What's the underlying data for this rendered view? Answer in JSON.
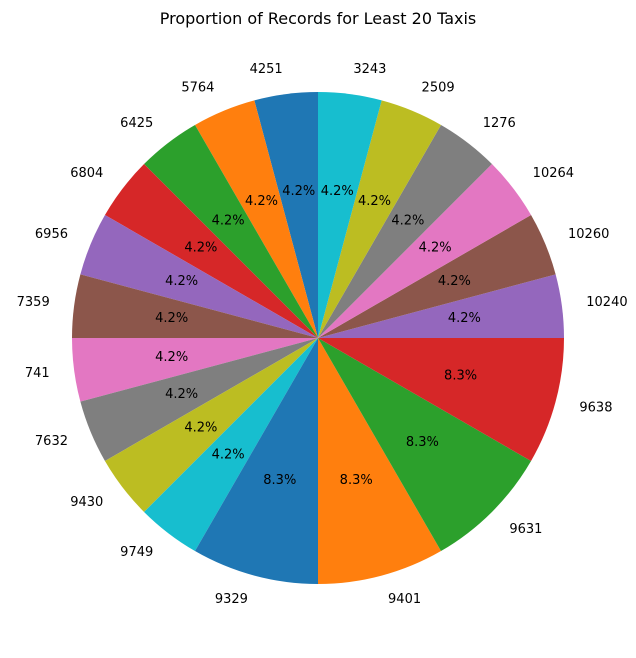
{
  "chart_data": {
    "type": "pie",
    "title": "Proportion of Records for Least 20 Taxis",
    "start_angle_deg": 90,
    "direction": "counterclockwise",
    "slices": [
      {
        "label": "4251",
        "value": 1,
        "pct_label": "4.2%",
        "color": "#1f77b4"
      },
      {
        "label": "5764",
        "value": 1,
        "pct_label": "4.2%",
        "color": "#ff7f0e"
      },
      {
        "label": "6425",
        "value": 1,
        "pct_label": "4.2%",
        "color": "#2ca02c"
      },
      {
        "label": "6804",
        "value": 1,
        "pct_label": "4.2%",
        "color": "#d62728"
      },
      {
        "label": "6956",
        "value": 1,
        "pct_label": "4.2%",
        "color": "#9467bd"
      },
      {
        "label": "7359",
        "value": 1,
        "pct_label": "4.2%",
        "color": "#8c564b"
      },
      {
        "label": "741",
        "value": 1,
        "pct_label": "4.2%",
        "color": "#e377c2"
      },
      {
        "label": "7632",
        "value": 1,
        "pct_label": "4.2%",
        "color": "#7f7f7f"
      },
      {
        "label": "9430",
        "value": 1,
        "pct_label": "4.2%",
        "color": "#bcbd22"
      },
      {
        "label": "9749",
        "value": 1,
        "pct_label": "4.2%",
        "color": "#17becf"
      },
      {
        "label": "9329",
        "value": 2,
        "pct_label": "8.3%",
        "color": "#1f77b4"
      },
      {
        "label": "9401",
        "value": 2,
        "pct_label": "8.3%",
        "color": "#ff7f0e"
      },
      {
        "label": "9631",
        "value": 2,
        "pct_label": "8.3%",
        "color": "#2ca02c"
      },
      {
        "label": "9638",
        "value": 2,
        "pct_label": "8.3%",
        "color": "#d62728"
      },
      {
        "label": "10240",
        "value": 1,
        "pct_label": "4.2%",
        "color": "#9467bd"
      },
      {
        "label": "10260",
        "value": 1,
        "pct_label": "4.2%",
        "color": "#8c564b"
      },
      {
        "label": "10264",
        "value": 1,
        "pct_label": "4.2%",
        "color": "#e377c2"
      },
      {
        "label": "1276",
        "value": 1,
        "pct_label": "4.2%",
        "color": "#7f7f7f"
      },
      {
        "label": "2509",
        "value": 1,
        "pct_label": "4.2%",
        "color": "#bcbd22"
      },
      {
        "label": "3243",
        "value": 1,
        "pct_label": "4.2%",
        "color": "#17becf"
      }
    ]
  }
}
